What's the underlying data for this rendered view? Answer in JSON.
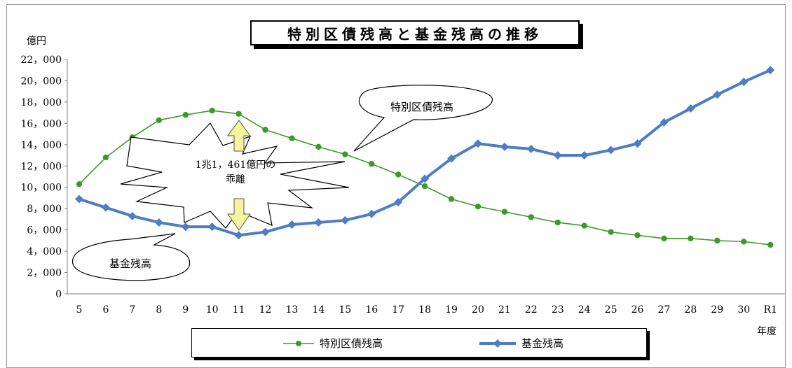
{
  "title": "特別区債残高と基金残高の推移",
  "y_unit": "億円",
  "x_unit": "年度",
  "callouts": {
    "bonds": "特別区債残高",
    "fund": "基金残高",
    "gap_line1": "1兆1，461億円の",
    "gap_line2": "乖離"
  },
  "colors": {
    "bonds": "#3c9a28",
    "fund": "#4f7cc4",
    "arrow_fill": "#f4f49a",
    "arrow_stroke": "#555555"
  },
  "chart_data": {
    "type": "line",
    "title": "特別区債残高と基金残高の推移",
    "ylabel": "億円",
    "xlabel": "年度",
    "ylim": [
      0,
      22000
    ],
    "yticks": [
      0,
      2000,
      4000,
      6000,
      8000,
      10000,
      12000,
      14000,
      16000,
      18000,
      20000,
      22000
    ],
    "ytick_labels": [
      "0",
      "2，000",
      "4，000",
      "6，000",
      "8，000",
      "10，000",
      "12，000",
      "14，000",
      "16，000",
      "18，000",
      "20，000",
      "22，000"
    ],
    "categories": [
      "5",
      "6",
      "7",
      "8",
      "9",
      "10",
      "11",
      "12",
      "13",
      "14",
      "15",
      "16",
      "17",
      "18",
      "19",
      "20",
      "21",
      "22",
      "23",
      "24",
      "25",
      "26",
      "27",
      "28",
      "29",
      "30",
      "R1"
    ],
    "grid": false,
    "legend_position": "bottom",
    "series": [
      {
        "name": "特別区債残高",
        "marker": "circle",
        "values": [
          10300,
          12800,
          14700,
          16300,
          16800,
          17200,
          16900,
          15400,
          14600,
          13800,
          13100,
          12200,
          11200,
          10100,
          8900,
          8200,
          7700,
          7200,
          6700,
          6400,
          5800,
          5500,
          5200,
          5200,
          5000,
          4900,
          4600
        ]
      },
      {
        "name": "基金残高",
        "marker": "diamond",
        "values": [
          8900,
          8100,
          7300,
          6700,
          6300,
          6300,
          5500,
          5800,
          6500,
          6700,
          6900,
          7500,
          8600,
          10800,
          12700,
          14100,
          13800,
          13600,
          13000,
          13000,
          13500,
          14100,
          16100,
          17400,
          18700,
          19900,
          21000
        ]
      }
    ],
    "annotations": [
      "特別区債残高",
      "基金残高",
      "1兆1，461億円の",
      "乖離"
    ]
  }
}
